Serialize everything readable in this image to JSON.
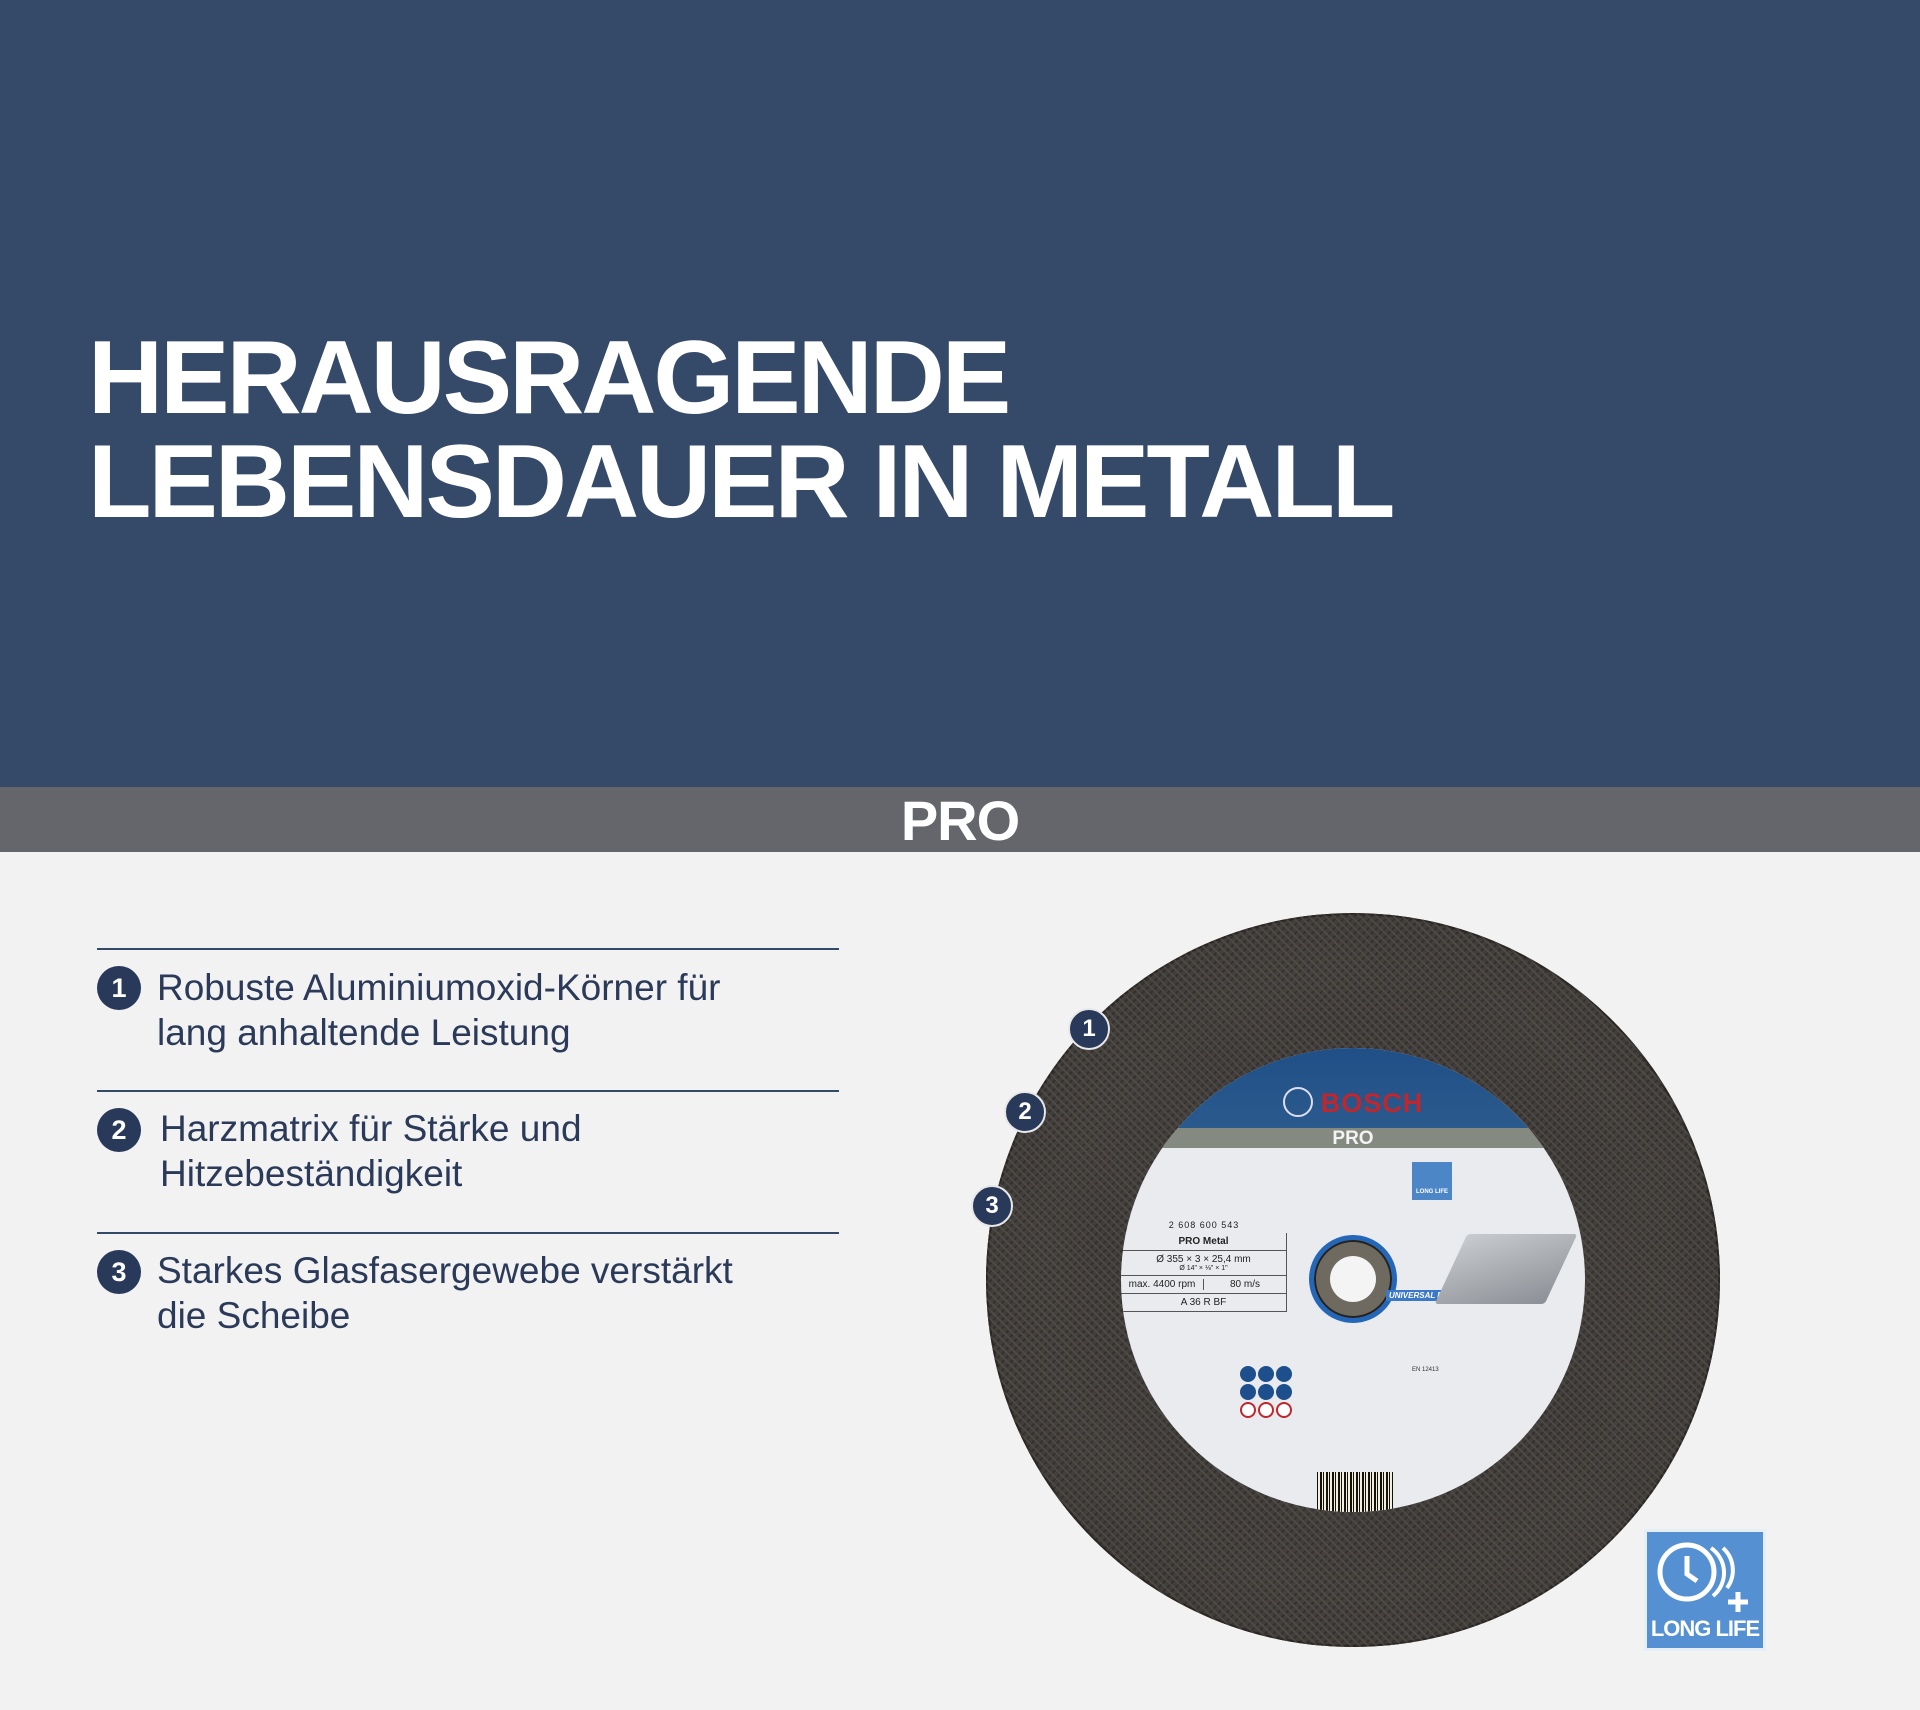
{
  "hero": {
    "title_line1": "HERAUSRAGENDE",
    "title_line2": "LEBENSDAUER IN METALL"
  },
  "band": {
    "label": "PRO"
  },
  "features": [
    {
      "number": "1",
      "line1": "Robuste Aluminiumoxid-Körner für",
      "line2": "lang anhaltende Leistung"
    },
    {
      "number": "2",
      "line1": "Harzmatrix für Stärke und",
      "line2": "Hitzebeständigkeit"
    },
    {
      "number": "3",
      "line1": "Starkes Glasfasergewebe verstärkt",
      "line2": "die Scheibe"
    }
  ],
  "disc": {
    "brand": "BOSCH",
    "line": "PRO",
    "part_number": "2 608 600 543",
    "product": "PRO Metal",
    "size_metric": "Ø 355 × 3 × 25,4 mm",
    "size_imperial": "Ø 14\" × ⅛\" × 1\"",
    "max_rpm": "max. 4400 rpm",
    "speed": "80 m/s",
    "spec": "A 36 R BF",
    "fit_badge": "UNIVERSAL BRAND FIT",
    "small_badge": "LONG LIFE",
    "cert": "EN 12413",
    "markers": [
      "1",
      "2",
      "3"
    ]
  },
  "badge": {
    "label": "LONG LIFE",
    "icon": "clock-plus-icon"
  },
  "colors": {
    "hero": "#354969",
    "band": "#64666b",
    "accent": "#28395a",
    "badge": "#5591d2",
    "brand_red": "#c0262d"
  }
}
